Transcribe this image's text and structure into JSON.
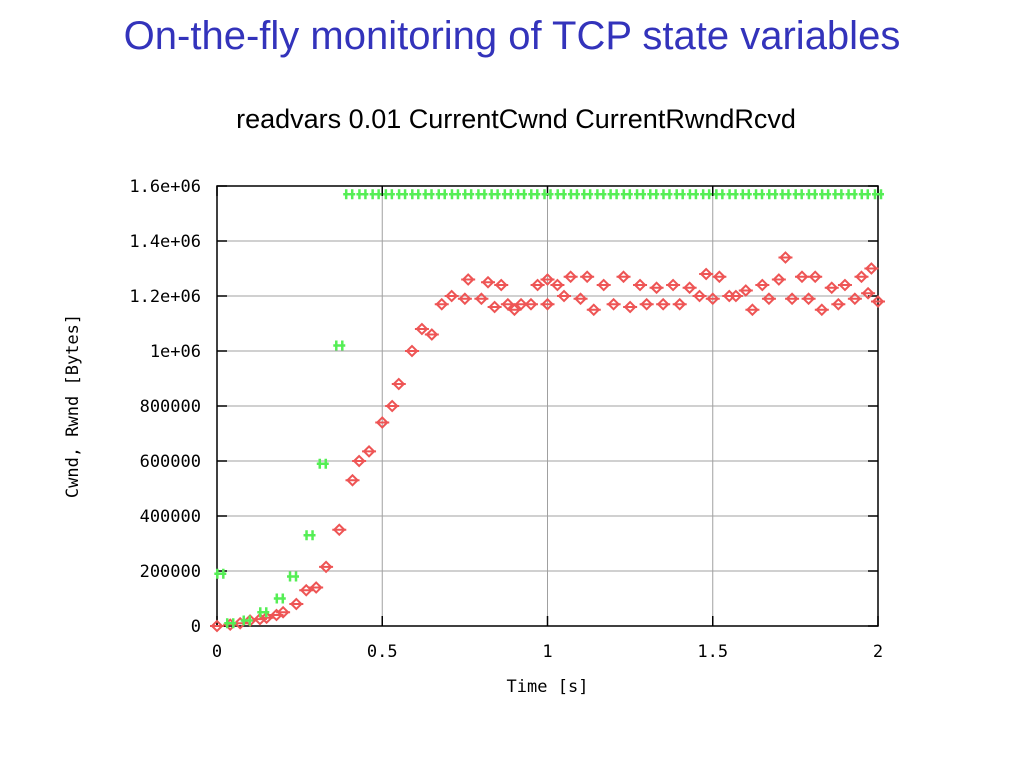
{
  "slide": {
    "title": "On-the-fly monitoring of TCP state variables",
    "subtitle": "readvars 0.01 CurrentCwnd CurrentRwndRcvd"
  },
  "chart_data": {
    "type": "scatter",
    "title": "",
    "xlabel": "Time [s]",
    "ylabel": "Cwnd, Rwnd [Bytes]",
    "xlim": [
      0,
      2
    ],
    "ylim": [
      0,
      1600000
    ],
    "x_ticks": [
      {
        "value": 0,
        "label": "0"
      },
      {
        "value": 0.5,
        "label": "0.5"
      },
      {
        "value": 1,
        "label": "1"
      },
      {
        "value": 1.5,
        "label": "1.5"
      },
      {
        "value": 2,
        "label": "2"
      }
    ],
    "y_ticks": [
      {
        "value": 0,
        "label": "0"
      },
      {
        "value": 200000,
        "label": "200000"
      },
      {
        "value": 400000,
        "label": "400000"
      },
      {
        "value": 600000,
        "label": "600000"
      },
      {
        "value": 800000,
        "label": "800000"
      },
      {
        "value": 1000000,
        "label": "1e+06"
      },
      {
        "value": 1200000,
        "label": "1.2e+06"
      },
      {
        "value": 1400000,
        "label": "1.4e+06"
      },
      {
        "value": 1600000,
        "label": "1.6e+06"
      }
    ],
    "grid": true,
    "legend": "none",
    "series": [
      {
        "color": "#ee5555",
        "points": [
          [
            0.0,
            0
          ],
          [
            0.04,
            5000
          ],
          [
            0.07,
            10000
          ],
          [
            0.1,
            20000
          ],
          [
            0.13,
            25000
          ],
          [
            0.15,
            30000
          ],
          [
            0.18,
            40000
          ],
          [
            0.2,
            50000
          ],
          [
            0.24,
            80000
          ],
          [
            0.27,
            130000
          ],
          [
            0.3,
            140000
          ],
          [
            0.33,
            215000
          ],
          [
            0.37,
            350000
          ],
          [
            0.41,
            530000
          ],
          [
            0.43,
            600000
          ],
          [
            0.46,
            635000
          ],
          [
            0.5,
            740000
          ],
          [
            0.53,
            800000
          ],
          [
            0.55,
            880000
          ],
          [
            0.59,
            1000000
          ],
          [
            0.62,
            1080000
          ],
          [
            0.65,
            1060000
          ],
          [
            0.68,
            1170000
          ],
          [
            0.71,
            1200000
          ],
          [
            0.75,
            1190000
          ],
          [
            0.76,
            1260000
          ],
          [
            0.8,
            1190000
          ],
          [
            0.82,
            1250000
          ],
          [
            0.84,
            1160000
          ],
          [
            0.86,
            1240000
          ],
          [
            0.88,
            1170000
          ],
          [
            0.9,
            1150000
          ],
          [
            0.92,
            1170000
          ],
          [
            0.95,
            1170000
          ],
          [
            0.97,
            1240000
          ],
          [
            1.0,
            1170000
          ],
          [
            1.0,
            1260000
          ],
          [
            1.03,
            1240000
          ],
          [
            1.05,
            1200000
          ],
          [
            1.07,
            1270000
          ],
          [
            1.1,
            1190000
          ],
          [
            1.12,
            1270000
          ],
          [
            1.14,
            1150000
          ],
          [
            1.17,
            1240000
          ],
          [
            1.2,
            1170000
          ],
          [
            1.23,
            1270000
          ],
          [
            1.25,
            1160000
          ],
          [
            1.28,
            1240000
          ],
          [
            1.3,
            1170000
          ],
          [
            1.33,
            1230000
          ],
          [
            1.35,
            1170000
          ],
          [
            1.38,
            1240000
          ],
          [
            1.4,
            1170000
          ],
          [
            1.43,
            1230000
          ],
          [
            1.46,
            1200000
          ],
          [
            1.48,
            1280000
          ],
          [
            1.5,
            1190000
          ],
          [
            1.52,
            1270000
          ],
          [
            1.55,
            1200000
          ],
          [
            1.57,
            1200000
          ],
          [
            1.6,
            1220000
          ],
          [
            1.62,
            1150000
          ],
          [
            1.65,
            1240000
          ],
          [
            1.67,
            1190000
          ],
          [
            1.7,
            1260000
          ],
          [
            1.72,
            1340000
          ],
          [
            1.74,
            1190000
          ],
          [
            1.77,
            1270000
          ],
          [
            1.79,
            1190000
          ],
          [
            1.81,
            1270000
          ],
          [
            1.83,
            1150000
          ],
          [
            1.86,
            1230000
          ],
          [
            1.88,
            1170000
          ],
          [
            1.9,
            1240000
          ],
          [
            1.93,
            1190000
          ],
          [
            1.95,
            1270000
          ],
          [
            1.97,
            1210000
          ],
          [
            1.98,
            1300000
          ],
          [
            2.0,
            1180000
          ]
        ]
      },
      {
        "color": "#55ee55",
        "points": [
          [
            0.01,
            190000
          ],
          [
            0.04,
            10000
          ],
          [
            0.09,
            20000
          ],
          [
            0.14,
            50000
          ],
          [
            0.19,
            100000
          ],
          [
            0.23,
            180000
          ],
          [
            0.28,
            330000
          ],
          [
            0.32,
            590000
          ],
          [
            0.37,
            1020000
          ],
          [
            0.4,
            1570000
          ],
          [
            0.44,
            1570000
          ],
          [
            0.48,
            1570000
          ],
          [
            0.52,
            1570000
          ],
          [
            0.56,
            1570000
          ],
          [
            0.6,
            1570000
          ],
          [
            0.64,
            1570000
          ],
          [
            0.68,
            1570000
          ],
          [
            0.72,
            1570000
          ],
          [
            0.76,
            1570000
          ],
          [
            0.8,
            1570000
          ],
          [
            0.84,
            1570000
          ],
          [
            0.88,
            1570000
          ],
          [
            0.92,
            1570000
          ],
          [
            0.96,
            1570000
          ],
          [
            1.0,
            1570000
          ],
          [
            1.04,
            1570000
          ],
          [
            1.08,
            1570000
          ],
          [
            1.12,
            1570000
          ],
          [
            1.16,
            1570000
          ],
          [
            1.2,
            1570000
          ],
          [
            1.24,
            1570000
          ],
          [
            1.28,
            1570000
          ],
          [
            1.32,
            1570000
          ],
          [
            1.36,
            1570000
          ],
          [
            1.4,
            1570000
          ],
          [
            1.44,
            1570000
          ],
          [
            1.48,
            1570000
          ],
          [
            1.52,
            1570000
          ],
          [
            1.56,
            1570000
          ],
          [
            1.6,
            1570000
          ],
          [
            1.64,
            1570000
          ],
          [
            1.68,
            1570000
          ],
          [
            1.72,
            1570000
          ],
          [
            1.76,
            1570000
          ],
          [
            1.8,
            1570000
          ],
          [
            1.84,
            1570000
          ],
          [
            1.88,
            1570000
          ],
          [
            1.92,
            1570000
          ],
          [
            1.96,
            1570000
          ],
          [
            2.0,
            1570000
          ]
        ]
      }
    ]
  }
}
